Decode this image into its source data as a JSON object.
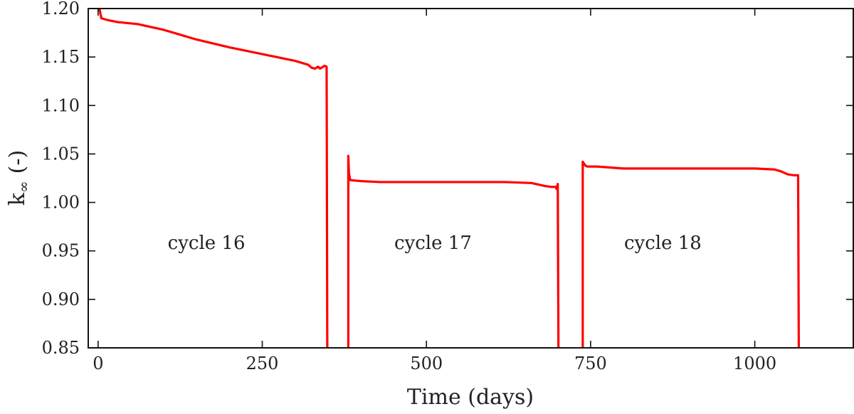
{
  "chart_data": {
    "type": "line",
    "title": "",
    "xlabel": "Time (days)",
    "ylabel_main": "k",
    "ylabel_sub": "∞",
    "ylabel_unit": "(-)",
    "xlim": [
      -15,
      1150
    ],
    "ylim": [
      0.85,
      1.2
    ],
    "xticks": [
      0,
      250,
      500,
      750,
      1000
    ],
    "xtick_labels": [
      "0",
      "250",
      "500",
      "750",
      "1000"
    ],
    "yticks": [
      0.85,
      0.9,
      0.95,
      1.0,
      1.05,
      1.1,
      1.15,
      1.2
    ],
    "ytick_labels": [
      "0.85",
      "0.90",
      "0.95",
      "1.00",
      "1.05",
      "1.10",
      "1.15",
      "1.20"
    ],
    "grid": false,
    "annotations": [
      {
        "text": "cycle 16",
        "x": 165,
        "y": 0.952
      },
      {
        "text": "cycle 17",
        "x": 510,
        "y": 0.952
      },
      {
        "text": "cycle 18",
        "x": 860,
        "y": 0.952
      }
    ],
    "series": [
      {
        "name": "cycle 16",
        "color": "#ff0000",
        "points": [
          [
            2,
            1.2
          ],
          [
            5,
            1.19
          ],
          [
            15,
            1.188
          ],
          [
            30,
            1.186
          ],
          [
            60,
            1.184
          ],
          [
            100,
            1.178
          ],
          [
            150,
            1.168
          ],
          [
            200,
            1.16
          ],
          [
            250,
            1.153
          ],
          [
            300,
            1.146
          ],
          [
            320,
            1.142
          ],
          [
            325,
            1.139
          ],
          [
            330,
            1.138
          ],
          [
            335,
            1.14
          ],
          [
            338,
            1.138
          ],
          [
            345,
            1.141
          ],
          [
            348,
            1.14
          ],
          [
            349,
            0.85
          ]
        ]
      },
      {
        "name": "cycle 17",
        "color": "#ff0000",
        "points": [
          [
            381,
            0.85
          ],
          [
            381,
            1.048
          ],
          [
            382,
            1.03
          ],
          [
            384,
            1.023
          ],
          [
            400,
            1.022
          ],
          [
            430,
            1.021
          ],
          [
            500,
            1.021
          ],
          [
            560,
            1.021
          ],
          [
            620,
            1.021
          ],
          [
            660,
            1.02
          ],
          [
            680,
            1.017
          ],
          [
            690,
            1.016
          ],
          [
            697,
            1.016
          ],
          [
            698,
            1.014
          ],
          [
            700,
            1.019
          ],
          [
            701,
            0.85
          ]
        ]
      },
      {
        "name": "cycle 18",
        "color": "#ff0000",
        "points": [
          [
            738,
            0.85
          ],
          [
            738,
            1.042
          ],
          [
            740,
            1.04
          ],
          [
            742,
            1.038
          ],
          [
            745,
            1.037
          ],
          [
            760,
            1.037
          ],
          [
            800,
            1.035
          ],
          [
            850,
            1.035
          ],
          [
            900,
            1.035
          ],
          [
            950,
            1.035
          ],
          [
            1000,
            1.035
          ],
          [
            1030,
            1.034
          ],
          [
            1040,
            1.032
          ],
          [
            1050,
            1.029
          ],
          [
            1060,
            1.028
          ],
          [
            1066,
            1.028
          ],
          [
            1067,
            0.85
          ]
        ]
      }
    ]
  }
}
